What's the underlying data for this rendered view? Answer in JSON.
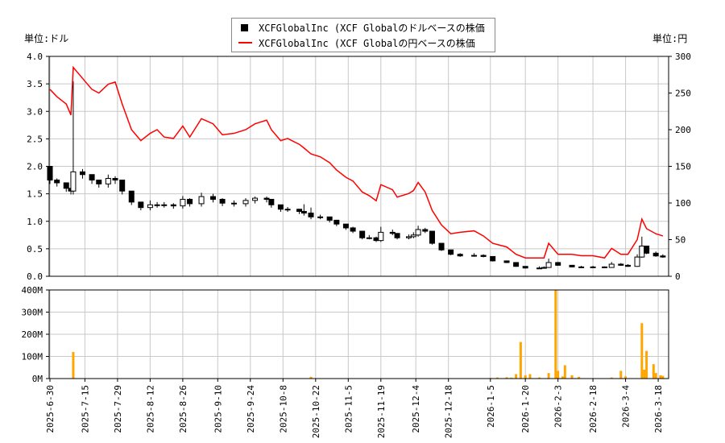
{
  "legend": {
    "usd_label": "XCFGlobalInc (XCF Globalのドルベースの株価",
    "jpy_label": "XCFGlobalInc (XCF Globalの円ベースの株価"
  },
  "units": {
    "left": "単位:ドル",
    "right": "単位:円"
  },
  "colors": {
    "usd": "#000000",
    "jpy": "#ff0000",
    "volume": "#ffa500",
    "grid": "#c8c8c8"
  },
  "chart_data": [
    {
      "type": "line",
      "series": [
        {
          "name": "XCFGlobalInc (XCF Globalのドルベースの株価",
          "axis": "left",
          "style": "candlestick"
        },
        {
          "name": "XCFGlobalInc (XCF Globalの円ベースの株価",
          "axis": "right"
        }
      ],
      "x": [
        "2025-06-30",
        "2025-07-03",
        "2025-07-07",
        "2025-07-09",
        "2025-07-10",
        "2025-07-14",
        "2025-07-18",
        "2025-07-21",
        "2025-07-25",
        "2025-07-28",
        "2025-07-31",
        "2025-08-04",
        "2025-08-08",
        "2025-08-12",
        "2025-08-15",
        "2025-08-18",
        "2025-08-22",
        "2025-08-26",
        "2025-08-29",
        "2025-09-03",
        "2025-09-08",
        "2025-09-12",
        "2025-09-17",
        "2025-09-22",
        "2025-09-26",
        "2025-10-01",
        "2025-10-03",
        "2025-10-07",
        "2025-10-10",
        "2025-10-15",
        "2025-10-17",
        "2025-10-20",
        "2025-10-24",
        "2025-10-28",
        "2025-10-31",
        "2025-11-04",
        "2025-11-07",
        "2025-11-11",
        "2025-11-14",
        "2025-11-17",
        "2025-11-19",
        "2025-11-24",
        "2025-11-26",
        "2025-12-01",
        "2025-12-03",
        "2025-12-05",
        "2025-12-08",
        "2025-12-11",
        "2025-12-15",
        "2025-12-19",
        "2025-12-23",
        "2025-12-29",
        "2026-01-02",
        "2026-01-06",
        "2026-01-12",
        "2026-01-16",
        "2026-01-20",
        "2026-01-26",
        "2026-01-28",
        "2026-01-30",
        "2026-02-03",
        "2026-02-09",
        "2026-02-13",
        "2026-02-18",
        "2026-02-23",
        "2026-02-26",
        "2026-03-02",
        "2026-03-05",
        "2026-03-09",
        "2026-03-11",
        "2026-03-13",
        "2026-03-17",
        "2026-03-20"
      ],
      "usd_close": [
        1.75,
        1.7,
        1.6,
        1.55,
        1.9,
        1.85,
        1.75,
        1.68,
        1.78,
        1.75,
        1.55,
        1.35,
        1.25,
        1.3,
        1.3,
        1.3,
        1.28,
        1.4,
        1.32,
        1.45,
        1.4,
        1.33,
        1.32,
        1.38,
        1.42,
        1.4,
        1.3,
        1.22,
        1.22,
        1.18,
        1.15,
        1.08,
        1.08,
        1.02,
        0.95,
        0.88,
        0.82,
        0.7,
        0.7,
        0.65,
        0.8,
        0.78,
        0.7,
        0.72,
        0.75,
        0.85,
        0.82,
        0.6,
        0.48,
        0.4,
        0.37,
        0.38,
        0.36,
        0.28,
        0.25,
        0.18,
        0.15,
        0.15,
        0.16,
        0.25,
        0.2,
        0.17,
        0.17,
        0.17,
        0.16,
        0.22,
        0.2,
        0.18,
        0.35,
        0.55,
        0.42,
        0.37,
        0.35
      ],
      "usd_high": [
        2.0,
        1.78,
        1.7,
        1.62,
        3.55,
        1.95,
        1.85,
        1.75,
        1.85,
        1.82,
        1.72,
        1.45,
        1.32,
        1.38,
        1.35,
        1.35,
        1.33,
        1.46,
        1.42,
        1.52,
        1.5,
        1.42,
        1.38,
        1.42,
        1.45,
        1.45,
        1.4,
        1.28,
        1.26,
        1.22,
        1.31,
        1.25,
        1.12,
        1.08,
        1.02,
        0.95,
        0.9,
        0.78,
        0.75,
        0.72,
        0.9,
        0.85,
        0.78,
        0.76,
        0.8,
        0.92,
        0.88,
        0.72,
        0.58,
        0.45,
        0.42,
        0.42,
        0.4,
        0.33,
        0.28,
        0.22,
        0.18,
        0.18,
        0.18,
        0.32,
        0.26,
        0.2,
        0.19,
        0.19,
        0.18,
        0.26,
        0.24,
        0.22,
        0.4,
        0.72,
        0.55,
        0.45,
        0.4
      ],
      "jpy_close": [
        255,
        245,
        235,
        220,
        285,
        270,
        255,
        250,
        262,
        265,
        235,
        200,
        185,
        195,
        200,
        190,
        188,
        205,
        190,
        215,
        208,
        193,
        195,
        200,
        208,
        213,
        200,
        185,
        188,
        180,
        175,
        167,
        163,
        155,
        145,
        135,
        130,
        115,
        110,
        103,
        125,
        118,
        108,
        113,
        117,
        128,
        115,
        90,
        70,
        58,
        60,
        62,
        55,
        45,
        40,
        30,
        25,
        25,
        25,
        45,
        30,
        30,
        28,
        28,
        25,
        38,
        30,
        30,
        50,
        78,
        65,
        58,
        55
      ],
      "ylim_left": [
        0,
        4.0
      ],
      "ylim_right": [
        0,
        300
      ],
      "yticks_left": [
        "0.0",
        "0.5",
        "1.0",
        "1.5",
        "2.0",
        "2.5",
        "3.0",
        "3.5",
        "4.0"
      ],
      "yticks_right": [
        "0",
        "50",
        "100",
        "150",
        "200",
        "250",
        "300"
      ],
      "xlim": [
        "2025-06-30",
        "2026-03-22"
      ],
      "grid": true,
      "legend_position": "top-center"
    },
    {
      "type": "bar",
      "name": "volume",
      "x": [
        "2025-07-10",
        "2025-09-22",
        "2025-10-20",
        "2025-12-11",
        "2026-01-05",
        "2026-01-08",
        "2026-01-12",
        "2026-01-14",
        "2026-01-16",
        "2026-01-18",
        "2026-01-20",
        "2026-01-22",
        "2026-01-26",
        "2026-01-30",
        "2026-02-02",
        "2026-02-03",
        "2026-02-05",
        "2026-02-06",
        "2026-02-09",
        "2026-02-12",
        "2026-02-26",
        "2026-03-02",
        "2026-03-04",
        "2026-03-11",
        "2026-03-12",
        "2026-03-13",
        "2026-03-16",
        "2026-03-17",
        "2026-03-19",
        "2026-03-20"
      ],
      "values": [
        120,
        2,
        8,
        2,
        3,
        5,
        6,
        4,
        20,
        165,
        15,
        20,
        5,
        25,
        400,
        35,
        10,
        60,
        15,
        8,
        5,
        35,
        10,
        250,
        40,
        125,
        65,
        25,
        15,
        12
      ],
      "unit": "M",
      "ylim": [
        0,
        400
      ],
      "yticks": [
        "0M",
        "100M",
        "200M",
        "300M",
        "400M"
      ],
      "xticks": [
        "2025-6-30",
        "2025-7-15",
        "2025-7-29",
        "2025-8-12",
        "2025-8-26",
        "2025-9-10",
        "2025-9-24",
        "2025-10-8",
        "2025-10-22",
        "2025-11-5",
        "2025-11-19",
        "2025-12-4",
        "2025-12-18",
        "2026-1-5",
        "2026-1-20",
        "2026-2-3",
        "2026-2-18",
        "2026-3-4",
        "2026-3-18"
      ]
    }
  ]
}
